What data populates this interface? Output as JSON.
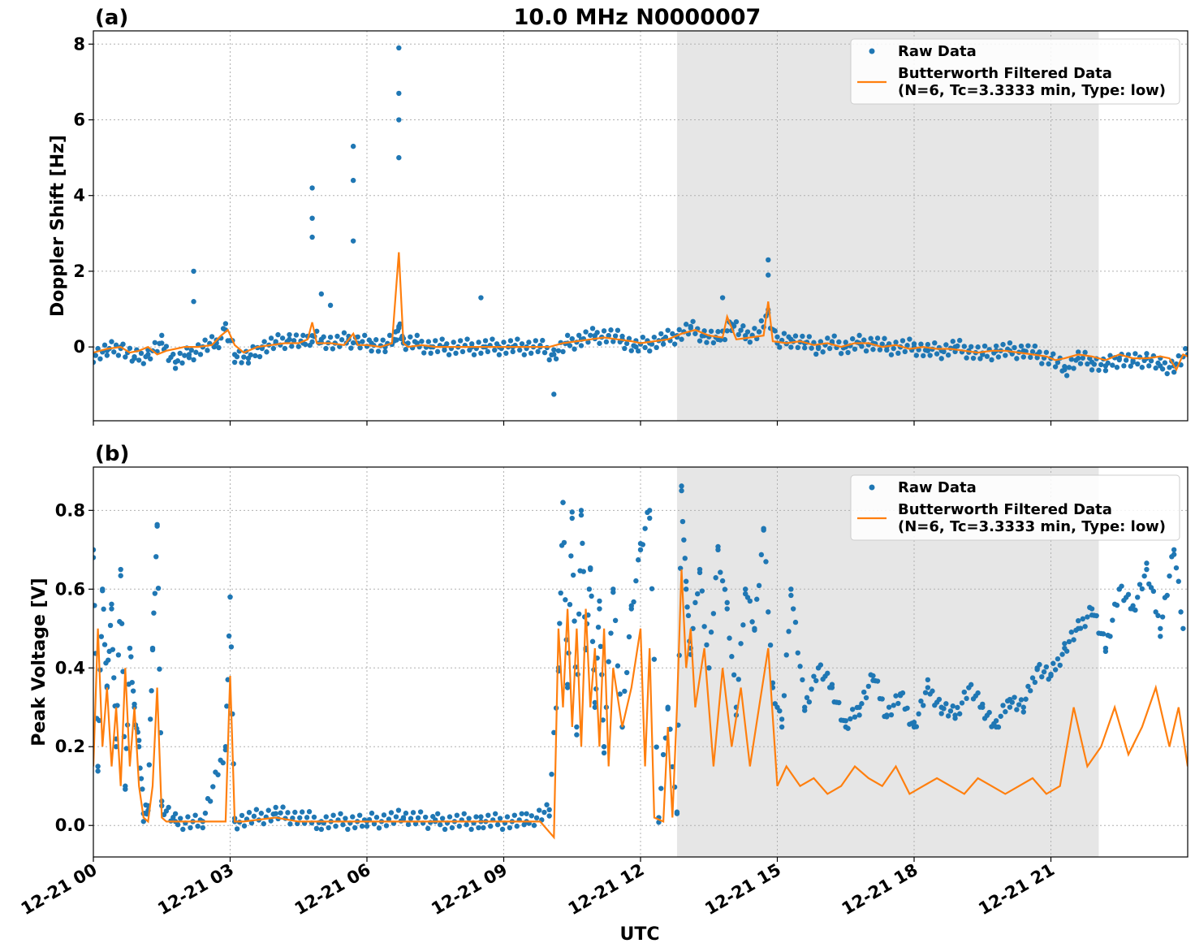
{
  "figure": {
    "title": "10.0 MHz N0000007",
    "xlabel": "UTC"
  },
  "colors": {
    "raw": "#1f77b4",
    "filtered": "#ff7f0e",
    "shade": "#e6e6e6",
    "grid": "#b0b0b0"
  },
  "chart_data": [
    {
      "type": "scatter",
      "panel_label": "(a)",
      "title": "10.0 MHz N0000007",
      "ylabel": "Doppler Shift [Hz]",
      "xlabel": "",
      "x_unit": "hours UTC on 12-21",
      "xlim": [
        0,
        24
      ],
      "ylim": [
        -1.95,
        8.35
      ],
      "yticks": [
        0,
        2,
        4,
        6,
        8
      ],
      "xticks": [
        0,
        3,
        6,
        9,
        12,
        15,
        18,
        21
      ],
      "xtick_labels": [
        "12-21 00",
        "12-21 03",
        "12-21 06",
        "12-21 09",
        "12-21 12",
        "12-21 15",
        "12-21 18",
        "12-21 21"
      ],
      "grid": true,
      "legend_position": "upper right",
      "legend": [
        "Raw Data",
        "Butterworth Filtered Data",
        "(N=6, Tc=3.3333 min, Type: low)"
      ],
      "shaded_x_range": [
        12.8,
        22.05
      ],
      "series": [
        {
          "name": "Raw Data",
          "style": "points",
          "x": [
            0.0,
            0.3,
            0.6,
            0.9,
            1.2,
            1.5,
            1.8,
            2.1,
            2.4,
            2.7,
            2.9,
            3.1,
            3.4,
            3.7,
            4.0,
            4.3,
            4.6,
            4.8,
            5.0,
            5.3,
            5.6,
            5.8,
            6.1,
            6.4,
            6.6,
            6.7,
            6.8,
            7.1,
            7.4,
            7.7,
            8.0,
            8.3,
            8.6,
            8.9,
            9.2,
            9.5,
            9.8,
            10.1,
            10.4,
            10.7,
            11.0,
            11.3,
            11.6,
            11.9,
            12.2,
            12.5,
            12.8,
            13.1,
            13.4,
            13.7,
            14.0,
            14.3,
            14.6,
            14.8,
            15.0,
            15.3,
            15.6,
            15.9,
            16.2,
            16.5,
            16.8,
            17.1,
            17.4,
            17.7,
            18.0,
            18.3,
            18.6,
            18.9,
            19.2,
            19.5,
            19.8,
            20.1,
            20.4,
            20.7,
            21.0,
            21.3,
            21.6,
            21.9,
            22.2,
            22.5,
            22.8,
            23.1,
            23.4,
            23.7,
            24.0
          ],
          "y": [
            -0.2,
            -0.1,
            0.0,
            -0.3,
            -0.2,
            0.1,
            -0.4,
            -0.2,
            0.0,
            0.1,
            0.45,
            -0.2,
            -0.3,
            0.0,
            0.1,
            0.2,
            0.1,
            0.3,
            0.2,
            0.1,
            0.2,
            0.1,
            0.1,
            0.0,
            0.2,
            0.5,
            0.1,
            0.1,
            0.0,
            0.0,
            0.0,
            0.0,
            0.0,
            0.0,
            0.0,
            0.0,
            0.0,
            -0.2,
            0.1,
            0.2,
            0.3,
            0.3,
            0.2,
            0.0,
            0.1,
            0.2,
            0.3,
            0.5,
            0.3,
            0.2,
            0.6,
            0.3,
            0.4,
            0.9,
            0.1,
            0.2,
            0.1,
            0.0,
            0.1,
            0.0,
            0.1,
            0.1,
            0.0,
            0.0,
            0.0,
            -0.1,
            -0.1,
            0.0,
            -0.1,
            -0.2,
            -0.1,
            -0.1,
            -0.1,
            -0.2,
            -0.3,
            -0.6,
            -0.3,
            -0.4,
            -0.5,
            -0.3,
            -0.4,
            -0.3,
            -0.5,
            -0.5,
            -0.2
          ]
        },
        {
          "name": "Raw Data spikes",
          "style": "points",
          "x": [
            2.2,
            2.2,
            4.8,
            4.8,
            4.8,
            5.0,
            5.2,
            5.7,
            5.7,
            5.7,
            6.7,
            6.7,
            6.7,
            6.7,
            8.5,
            10.1,
            13.8,
            14.8,
            14.8
          ],
          "y": [
            2.0,
            1.2,
            4.2,
            3.4,
            2.9,
            1.4,
            1.1,
            5.3,
            4.4,
            2.8,
            7.9,
            6.7,
            6.0,
            5.0,
            1.3,
            -1.25,
            1.3,
            2.3,
            1.9
          ]
        },
        {
          "name": "Butterworth Filtered Data",
          "style": "line",
          "x": [
            0.0,
            0.3,
            0.6,
            0.8,
            1.0,
            1.2,
            1.4,
            1.6,
            1.8,
            2.0,
            2.3,
            2.6,
            2.8,
            2.95,
            3.1,
            3.3,
            3.6,
            3.9,
            4.2,
            4.5,
            4.7,
            4.8,
            4.9,
            5.2,
            5.5,
            5.7,
            5.8,
            6.0,
            6.3,
            6.55,
            6.7,
            6.8,
            6.9,
            7.2,
            7.5,
            8.0,
            8.5,
            9.0,
            9.5,
            9.7,
            10.0,
            10.3,
            10.6,
            10.9,
            11.2,
            11.5,
            11.8,
            12.0,
            12.3,
            12.6,
            12.9,
            13.2,
            13.5,
            13.8,
            13.9,
            14.1,
            14.4,
            14.7,
            14.8,
            14.9,
            15.2,
            15.5,
            15.8,
            16.1,
            16.4,
            16.7,
            17.0,
            17.3,
            17.6,
            17.9,
            18.2,
            18.5,
            18.8,
            19.1,
            19.4,
            19.7,
            20.0,
            20.3,
            20.6,
            20.9,
            21.1,
            21.3,
            21.6,
            21.9,
            22.2,
            22.5,
            22.8,
            23.1,
            23.4,
            23.6,
            23.75,
            23.9,
            24.0
          ],
          "y": [
            -0.15,
            -0.05,
            0.0,
            -0.15,
            -0.1,
            0.0,
            -0.2,
            -0.1,
            -0.05,
            0.0,
            0.0,
            0.05,
            0.3,
            0.45,
            0.05,
            -0.15,
            0.0,
            0.05,
            0.1,
            0.1,
            0.2,
            0.65,
            0.1,
            0.1,
            0.05,
            0.35,
            0.05,
            0.05,
            0.0,
            0.1,
            2.5,
            0.1,
            0.0,
            0.05,
            0.0,
            0.0,
            0.0,
            0.0,
            0.0,
            0.0,
            0.0,
            0.1,
            0.15,
            0.2,
            0.25,
            0.2,
            0.15,
            0.1,
            0.15,
            0.2,
            0.35,
            0.45,
            0.3,
            0.25,
            0.8,
            0.2,
            0.25,
            0.3,
            1.2,
            0.15,
            0.1,
            0.15,
            0.05,
            0.1,
            0.0,
            0.1,
            0.1,
            0.0,
            0.05,
            -0.05,
            0.0,
            -0.05,
            -0.05,
            -0.1,
            -0.15,
            -0.1,
            -0.1,
            -0.15,
            -0.2,
            -0.25,
            -0.35,
            -0.3,
            -0.2,
            -0.25,
            -0.35,
            -0.2,
            -0.3,
            -0.3,
            -0.25,
            -0.3,
            -0.6,
            -0.2,
            -0.25
          ]
        }
      ]
    },
    {
      "type": "scatter",
      "panel_label": "(b)",
      "title": "",
      "ylabel": "Peak Voltage [V]",
      "xlabel": "UTC",
      "x_unit": "hours UTC on 12-21",
      "xlim": [
        0,
        24
      ],
      "ylim": [
        -0.08,
        0.91
      ],
      "yticks": [
        0.0,
        0.2,
        0.4,
        0.6,
        0.8
      ],
      "ytick_labels": [
        "0.0",
        "0.2",
        "0.4",
        "0.6",
        "0.8"
      ],
      "xticks": [
        0,
        3,
        6,
        9,
        12,
        15,
        18,
        21
      ],
      "xtick_labels": [
        "12-21 00",
        "12-21 03",
        "12-21 06",
        "12-21 09",
        "12-21 12",
        "12-21 15",
        "12-21 18",
        "12-21 21"
      ],
      "grid": true,
      "legend_position": "upper right",
      "legend": [
        "Raw Data",
        "Butterworth Filtered Data",
        "(N=6, Tc=3.3333 min, Type: low)"
      ],
      "shaded_x_range": [
        12.8,
        22.05
      ],
      "series": [
        {
          "name": "Raw Data",
          "style": "points",
          "x": [
            0.0,
            0.1,
            0.2,
            0.3,
            0.4,
            0.5,
            0.6,
            0.7,
            0.8,
            0.9,
            1.0,
            1.1,
            1.2,
            1.3,
            1.4,
            1.5,
            1.8,
            2.4,
            2.9,
            3.0,
            3.1,
            4.0,
            5.0,
            6.0,
            6.8,
            7.5,
            8.5,
            9.5,
            10.0,
            10.2,
            10.3,
            10.4,
            10.5,
            10.6,
            10.7,
            10.8,
            10.9,
            11.0,
            11.1,
            11.2,
            11.4,
            11.6,
            11.8,
            12.0,
            12.2,
            12.4,
            12.6,
            12.8,
            12.9,
            13.0,
            13.1,
            13.3,
            13.5,
            13.7,
            13.9,
            14.1,
            14.3,
            14.5,
            14.7,
            14.9,
            15.1,
            15.3,
            15.6,
            15.9,
            16.2,
            16.5,
            16.8,
            17.1,
            17.4,
            17.7,
            18.0,
            18.3,
            18.6,
            18.9,
            19.2,
            19.5,
            19.8,
            20.1,
            20.4,
            20.7,
            21.0,
            21.3,
            21.6,
            21.9,
            22.2,
            22.5,
            22.8,
            23.1,
            23.4,
            23.7,
            23.9
          ],
          "y": [
            0.7,
            0.15,
            0.6,
            0.35,
            0.55,
            0.2,
            0.65,
            0.1,
            0.45,
            0.3,
            0.2,
            0.03,
            0.05,
            0.45,
            0.76,
            0.05,
            0.01,
            0.01,
            0.2,
            0.58,
            0.01,
            0.03,
            0.01,
            0.01,
            0.02,
            0.01,
            0.01,
            0.01,
            0.04,
            0.4,
            0.82,
            0.35,
            0.78,
            0.25,
            0.8,
            0.45,
            0.65,
            0.3,
            0.55,
            0.2,
            0.6,
            0.25,
            0.55,
            0.7,
            0.8,
            0.02,
            0.3,
            0.03,
            0.85,
            0.6,
            0.45,
            0.65,
            0.4,
            0.7,
            0.55,
            0.3,
            0.6,
            0.5,
            0.75,
            0.35,
            0.25,
            0.6,
            0.3,
            0.4,
            0.35,
            0.25,
            0.3,
            0.38,
            0.28,
            0.33,
            0.25,
            0.35,
            0.3,
            0.28,
            0.35,
            0.3,
            0.25,
            0.32,
            0.3,
            0.4,
            0.38,
            0.45,
            0.5,
            0.55,
            0.45,
            0.6,
            0.55,
            0.65,
            0.5,
            0.7,
            0.5
          ]
        },
        {
          "name": "Butterworth Filtered Data",
          "style": "line",
          "x": [
            0.0,
            0.1,
            0.2,
            0.3,
            0.4,
            0.5,
            0.6,
            0.7,
            0.8,
            0.9,
            1.0,
            1.1,
            1.2,
            1.3,
            1.4,
            1.5,
            1.6,
            2.0,
            2.5,
            2.9,
            3.0,
            3.05,
            3.1,
            3.3,
            4.0,
            4.5,
            5.0,
            6.0,
            7.0,
            8.0,
            9.0,
            9.8,
            10.1,
            10.2,
            10.3,
            10.4,
            10.5,
            10.6,
            10.7,
            10.8,
            10.9,
            11.0,
            11.1,
            11.2,
            11.3,
            11.4,
            11.6,
            11.8,
            12.0,
            12.1,
            12.2,
            12.3,
            12.5,
            12.6,
            12.7,
            12.8,
            12.9,
            13.0,
            13.1,
            13.2,
            13.4,
            13.6,
            13.8,
            14.0,
            14.2,
            14.4,
            14.6,
            14.8,
            15.0,
            15.2,
            15.5,
            15.8,
            16.1,
            16.4,
            16.7,
            17.0,
            17.3,
            17.6,
            17.9,
            18.2,
            18.5,
            18.8,
            19.1,
            19.4,
            19.7,
            20.0,
            20.3,
            20.6,
            20.9,
            21.2,
            21.5,
            21.8,
            22.1,
            22.4,
            22.7,
            23.0,
            23.3,
            23.6,
            23.8,
            24.0
          ],
          "y": [
            0.15,
            0.5,
            0.2,
            0.35,
            0.15,
            0.3,
            0.1,
            0.4,
            0.15,
            0.3,
            0.1,
            0.02,
            0.01,
            0.1,
            0.35,
            0.02,
            0.01,
            0.01,
            0.01,
            0.01,
            0.38,
            0.2,
            0.01,
            0.01,
            0.02,
            0.01,
            0.01,
            0.01,
            0.01,
            0.01,
            0.01,
            0.01,
            -0.03,
            0.5,
            0.3,
            0.55,
            0.25,
            0.5,
            0.2,
            0.55,
            0.3,
            0.45,
            0.2,
            0.5,
            0.15,
            0.4,
            0.25,
            0.35,
            0.5,
            0.15,
            0.45,
            0.02,
            0.01,
            0.25,
            0.02,
            0.3,
            0.65,
            0.4,
            0.5,
            0.3,
            0.45,
            0.15,
            0.4,
            0.2,
            0.35,
            0.15,
            0.3,
            0.45,
            0.1,
            0.15,
            0.1,
            0.12,
            0.08,
            0.1,
            0.15,
            0.12,
            0.1,
            0.15,
            0.08,
            0.1,
            0.12,
            0.1,
            0.08,
            0.12,
            0.1,
            0.08,
            0.1,
            0.12,
            0.08,
            0.1,
            0.3,
            0.15,
            0.2,
            0.3,
            0.18,
            0.25,
            0.35,
            0.2,
            0.3,
            0.15
          ]
        }
      ]
    }
  ]
}
